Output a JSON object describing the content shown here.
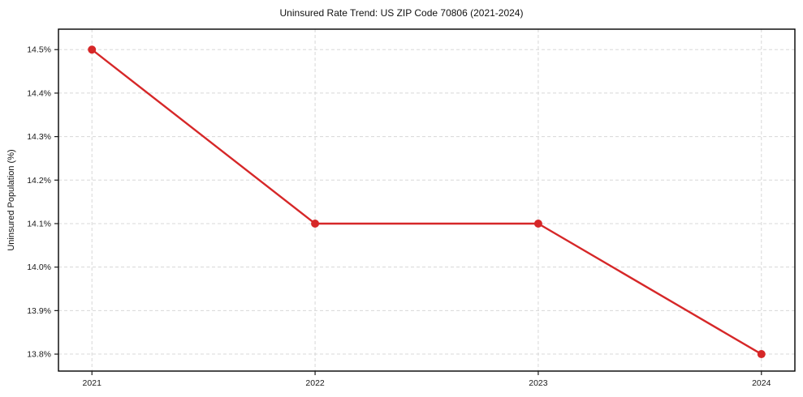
{
  "chart_data": {
    "type": "line",
    "title": "Uninsured Rate Trend: US ZIP Code 70806 (2021-2024)",
    "xlabel": "",
    "ylabel": "Uninsured Population (%)",
    "x": [
      2021,
      2022,
      2023,
      2024
    ],
    "series": [
      {
        "name": "Uninsured Rate",
        "values": [
          14.5,
          14.1,
          14.1,
          13.8
        ]
      }
    ],
    "x_tick_labels": [
      "2021",
      "2022",
      "2023",
      "2024"
    ],
    "y_ticks": [
      13.8,
      13.9,
      14.0,
      14.1,
      14.2,
      14.3,
      14.4,
      14.5
    ],
    "y_tick_labels": [
      "13.8%",
      "13.9%",
      "14.0%",
      "14.1%",
      "14.2%",
      "14.3%",
      "14.4%",
      "14.5%"
    ],
    "xlim": [
      2020.85,
      2024.15
    ],
    "ylim": [
      13.761,
      14.547
    ],
    "grid": true,
    "grid_style": "dashed",
    "legend_position": "none",
    "line_color": "#d62728",
    "marker": "circle",
    "marker_color": "#d62728",
    "grid_color": "#d8d8d8",
    "spine_color": "#000000",
    "tick_color": "#1a1a1a"
  }
}
